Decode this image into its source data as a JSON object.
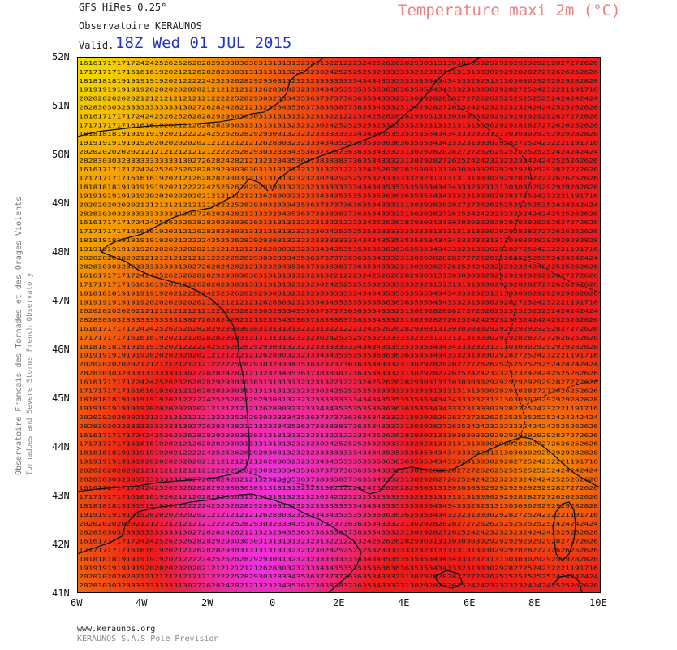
{
  "header": {
    "model": "GFS HiRes 0.25°",
    "observatory": "Observatoire KERAUNOS",
    "valid_label": "Valid.",
    "valid_date": "18Z Wed 01 JUL 2015",
    "title": "Temperature maxi 2m (°C)"
  },
  "side_text": {
    "line1": "Observatoire Francais des Tornades et des Orages Violents",
    "line2": "Tornadoes and Severe Storms French Observatory"
  },
  "footer": {
    "site": "www.keraunos.org",
    "company": "KERAUNOS S.A.S Pole Prevision"
  },
  "axes": {
    "lat_labels": [
      "52N",
      "51N",
      "50N",
      "49N",
      "48N",
      "47N",
      "46N",
      "45N",
      "44N",
      "43N",
      "42N",
      "41N"
    ],
    "lon_labels": [
      "6W",
      "4W",
      "2W",
      "0",
      "2E",
      "4E",
      "6E",
      "8E",
      "10E"
    ]
  },
  "colors": {
    "yellow": "#f5d000",
    "orange": "#f59000",
    "red": "#ee1b1b",
    "magenta": "#ee33dd",
    "coast": "#111111"
  },
  "map_data": {
    "rows_sample": [
      "16161717171724242526252628282929303030313131313232313221222324252626282930313130303030292929292929292827272626",
      "17171717171616161920212126282829303131313131323232302425252525323333333232313131313130302929282827272626252626",
      "18181818191919191920212222242525262829293031323232333333333434343535353535343434333232313130303029292929282828",
      "19191919191919202020202020212121212121262830323233343435353535363636363535343433323130302928272524232221191716",
      "20202020202021212121212121212222252829303233343536373737363635343332313029282828272726262525252525252424242424",
      "28283030323333333333313027262824282121323234353637383838373635343332313029282726252424232323232424242525262626"
    ]
  }
}
